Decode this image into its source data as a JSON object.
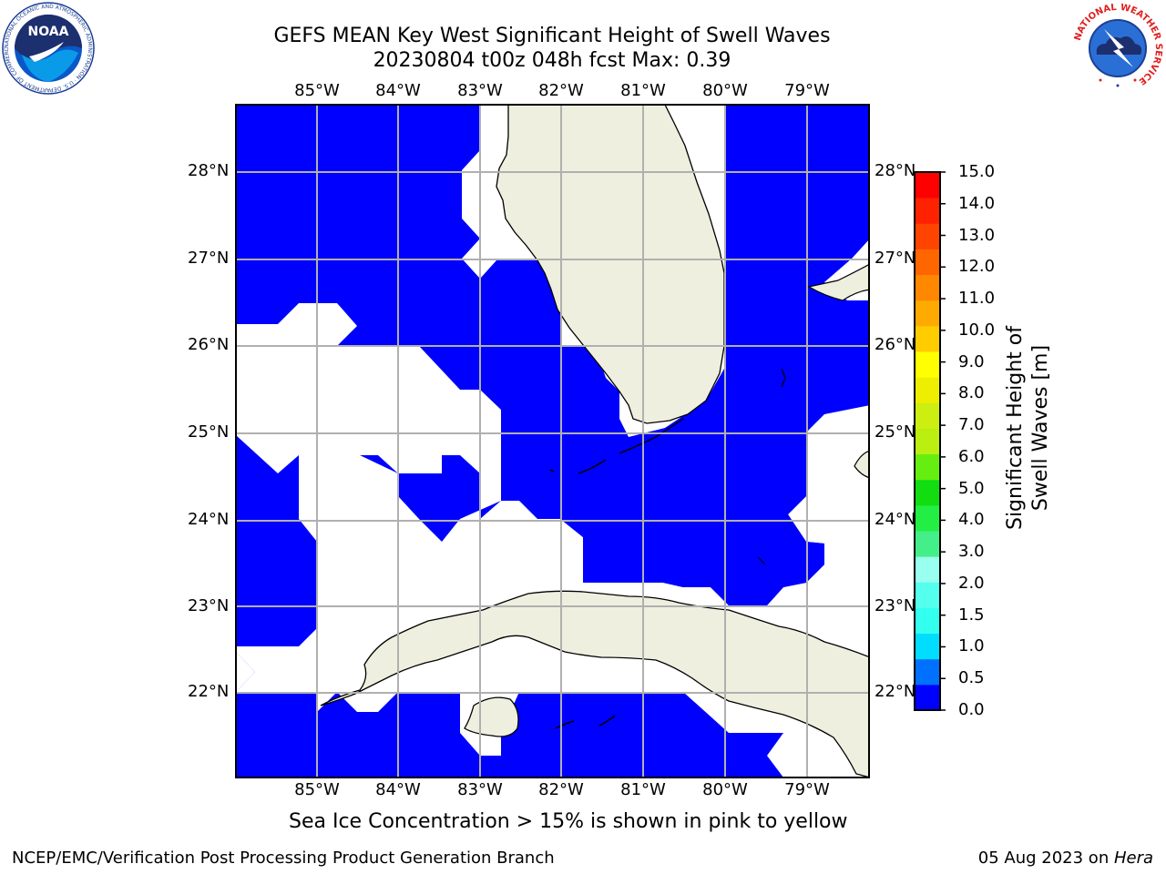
{
  "title_line1": "GEFS MEAN Key West Significant Height of Swell Waves",
  "title_line2": "20230804 t00z 048h fcst   Max: 0.39",
  "lon_labels": [
    "85°W",
    "84°W",
    "83°W",
    "82°W",
    "81°W",
    "80°W",
    "79°W"
  ],
  "lat_labels": [
    "28°N",
    "27°N",
    "26°N",
    "25°N",
    "24°N",
    "23°N",
    "22°N"
  ],
  "colorbar": {
    "label": "Significant Height of Swell Waves [m]",
    "ticks": [
      "15.0",
      "14.0",
      "13.0",
      "12.0",
      "11.0",
      "10.0",
      "9.0",
      "8.0",
      "7.0",
      "6.0",
      "5.0",
      "4.0",
      "3.0",
      "2.0",
      "1.5",
      "1.0",
      "0.5",
      "0.0"
    ],
    "colors": [
      "#0000ff",
      "#0070ff",
      "#00ddff",
      "#33ffee",
      "#55ffee",
      "#99ffee",
      "#44ee88",
      "#22ee44",
      "#11dd11",
      "#66ee11",
      "#bbee11",
      "#ccee11",
      "#eeee00",
      "#ffff00",
      "#ffcc00",
      "#ffaa00",
      "#ff8800",
      "#ff6600",
      "#ff4400",
      "#ff2200",
      "#ff0000"
    ]
  },
  "ocean_color": "#0000ff",
  "land_color": "#efefdf",
  "caption": "Sea Ice Concentration > 15% is shown in pink to yellow",
  "footer_left": "NCEP/EMC/Verification Post Processing Product Generation Branch",
  "footer_right_date": "05 Aug 2023 on ",
  "footer_right_host": "Hera",
  "logos": {
    "noaa_text": "NOAA",
    "noaa_ring": "NATIONAL OCEANIC AND ATMOSPHERIC ADMINISTRATION · U.S. DEPARTMENT OF COMMERCE",
    "nws_ring": "NATIONAL WEATHER SERVICE"
  }
}
